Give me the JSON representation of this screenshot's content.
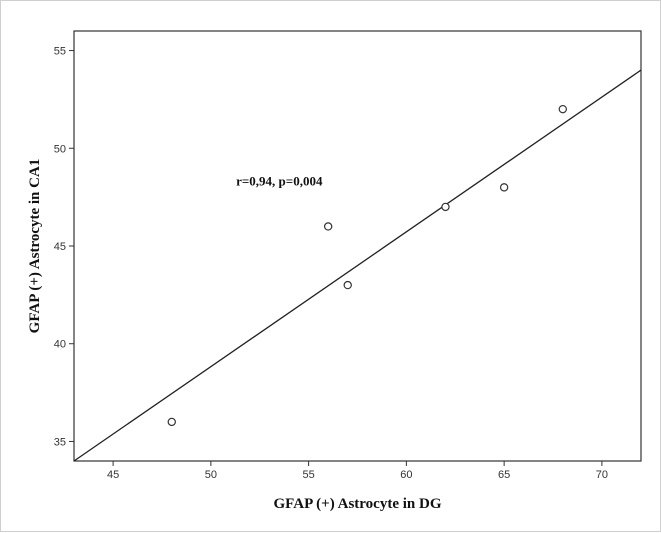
{
  "chart_data": {
    "type": "scatter",
    "title": "",
    "xlabel": "GFAP (+) Astrocyte in DG",
    "ylabel": "GFAP (+) Astrocyte in CA1",
    "xlim": [
      43,
      72
    ],
    "ylim": [
      34,
      56
    ],
    "xticks": [
      45,
      50,
      55,
      60,
      65,
      70
    ],
    "yticks": [
      35,
      40,
      45,
      50,
      55
    ],
    "grid": false,
    "legend": "none",
    "series": [
      {
        "points": [
          {
            "x": 48,
            "y": 36
          },
          {
            "x": 56,
            "y": 46
          },
          {
            "x": 57,
            "y": 43
          },
          {
            "x": 62,
            "y": 47
          },
          {
            "x": 65,
            "y": 48
          },
          {
            "x": 68,
            "y": 52
          }
        ],
        "marker": "open-circle",
        "color": "#333333"
      }
    ],
    "fit_line": {
      "type": "linear",
      "start": {
        "x": 43,
        "y": 34
      },
      "end": {
        "x": 72,
        "y": 54
      }
    },
    "annotations": [
      {
        "text": "r=0,94, p=0,004",
        "x": 53.5,
        "y": 48.1
      }
    ]
  },
  "colors": {
    "plot_background": "#ffffff",
    "axis": "#333333",
    "marker": "#333333",
    "fit_line": "#222222"
  }
}
